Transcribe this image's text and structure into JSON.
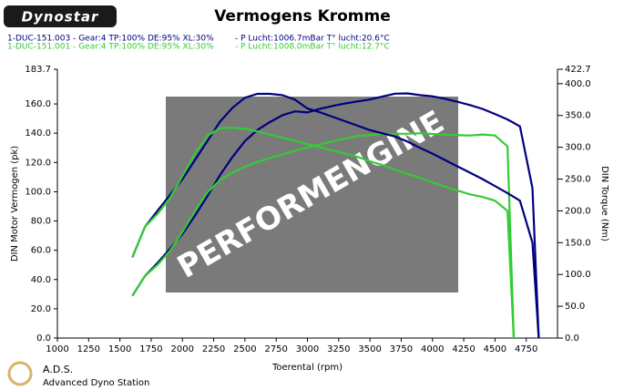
{
  "logo": "Dynostar",
  "footer": {
    "name": "A.D.S.",
    "subtitle": "Advanced Dyno Station"
  },
  "watermark": "PERFORMENGINE",
  "chart_data": {
    "type": "line",
    "title": "Vermogens Kromme",
    "legend_lines": [
      {
        "run": "1-DUC-151.003 - Gear:4 TP:100% DE:95% XL:30%",
        "air": "- P Lucht:1006.7mBar T° lucht:20.6°C",
        "color": "#000080"
      },
      {
        "run": "1-DUC-151.001 - Gear:4 TP:100% DE:95% XL:30%",
        "air": "- P Lucht:1008.0mBar T° lucht:12.7°C",
        "color": "#33cc33"
      }
    ],
    "x_label": "Toerental (rpm)",
    "y_label": "DIN Motor Vermogen (pk)",
    "y2_label": "DIN Torque (Nm)",
    "xlim": [
      1000,
      5000
    ],
    "xticks": [
      1000,
      1250,
      1500,
      1750,
      2000,
      2250,
      2500,
      2750,
      3000,
      3250,
      3500,
      3750,
      4000,
      4250,
      4500,
      4750
    ],
    "ylim": [
      0,
      183.7
    ],
    "yticks": [
      {
        "value": 0,
        "label": "0.0"
      },
      {
        "value": 20,
        "label": "20.0"
      },
      {
        "value": 40,
        "label": "40.0"
      },
      {
        "value": 60,
        "label": "60.0"
      },
      {
        "value": 80,
        "label": "80.0"
      },
      {
        "value": 100,
        "label": "100.0"
      },
      {
        "value": 120,
        "label": "120.0"
      },
      {
        "value": 140,
        "label": "140.0"
      },
      {
        "value": 160,
        "label": "160.0"
      },
      183.7
    ],
    "y2lim": [
      0,
      422.7
    ],
    "y2ticks": [
      {
        "value": 0,
        "label": "0.0"
      },
      {
        "value": 50,
        "label": "50.0"
      },
      {
        "value": 100,
        "label": "100.0"
      },
      {
        "value": 150,
        "label": "150.0"
      },
      {
        "value": 200,
        "label": "200.0"
      },
      {
        "value": 250,
        "label": "250.0"
      },
      {
        "value": 300,
        "label": "300.0"
      },
      {
        "value": 350,
        "label": "350.0"
      },
      {
        "value": 400,
        "label": "400.0"
      },
      422.7
    ],
    "x": [
      1600,
      1700,
      1800,
      1900,
      2000,
      2100,
      2200,
      2300,
      2400,
      2500,
      2600,
      2700,
      2800,
      2900,
      3000,
      3100,
      3200,
      3300,
      3400,
      3500,
      3600,
      3700,
      3800,
      3900,
      4000,
      4100,
      4200,
      4300,
      4400,
      4500,
      4600,
      4650,
      4700,
      4800,
      4850
    ],
    "series": [
      {
        "color": "#000080",
        "values": [
          28.9,
          42.4,
          51.3,
          60.9,
          71.2,
          83.7,
          97.1,
          111.3,
          123.7,
          134.6,
          142.2,
          147.6,
          152.3,
          154.9,
          154.2,
          156.7,
          158.6,
          160.3,
          161.7,
          163.0,
          165.1,
          167.0,
          167.2,
          166.0,
          165.2,
          163.5,
          161.5,
          159.2,
          156.6,
          153.1,
          149.4,
          147.0,
          144.6,
          102.5,
          0
        ]
      },
      {
        "color": "#33cc33",
        "values": [
          28.9,
          42.4,
          50.0,
          59.5,
          72.6,
          86.7,
          99.6,
          107.9,
          113.1,
          117.1,
          120.3,
          123.0,
          125.6,
          128.0,
          130.3,
          132.4,
          134.4,
          136.3,
          138.0,
          138.6,
          139.6,
          139.6,
          139.7,
          140.0,
          139.5,
          138.9,
          138.7,
          138.4,
          139.1,
          138.4,
          131.0,
          0,
          null,
          null,
          null
        ]
      },
      {
        "color": "#000080",
        "axis": "y2",
        "values": [
          127,
          175,
          200,
          225,
          250,
          280,
          310,
          340,
          362,
          378,
          384,
          384,
          382,
          375,
          361,
          355,
          348,
          341,
          334,
          327,
          322,
          317,
          309,
          299,
          290,
          280,
          270,
          260,
          250,
          239,
          228,
          222,
          216,
          150,
          0
        ]
      },
      {
        "color": "#33cc33",
        "axis": "y2",
        "values": [
          127,
          175,
          195,
          220,
          255,
          290,
          318,
          330,
          331,
          329,
          325,
          320,
          315,
          310,
          305,
          300,
          295,
          290,
          285,
          278,
          272,
          265,
          258,
          252,
          245,
          238,
          232,
          226,
          222,
          216,
          200,
          0,
          null,
          null,
          null
        ]
      }
    ]
  }
}
